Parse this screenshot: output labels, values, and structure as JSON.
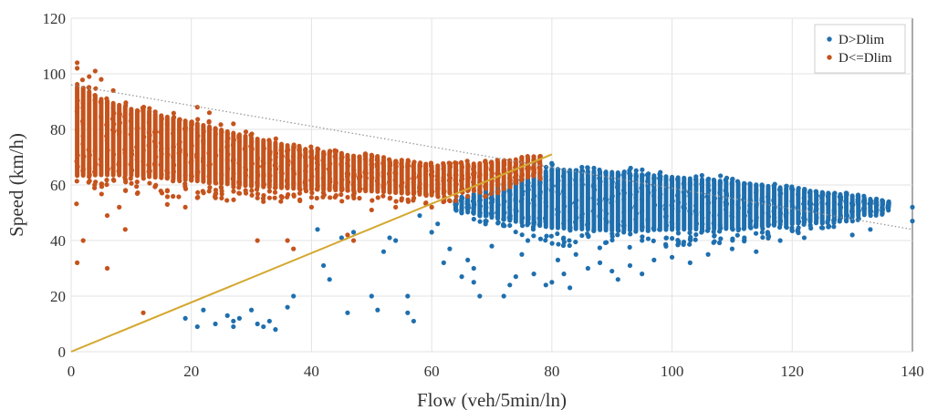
{
  "chart_data": {
    "type": "scatter",
    "xlabel": "Flow (veh/5min/ln)",
    "ylabel": "Speed (km/h)",
    "xlim": [
      0,
      140
    ],
    "ylim": [
      0,
      120
    ],
    "xticks": [
      0,
      20,
      40,
      60,
      80,
      100,
      120,
      140
    ],
    "yticks": [
      0,
      20,
      40,
      60,
      80,
      100,
      120
    ],
    "grid": true,
    "legend_position": "top-right",
    "legend": [
      "D>Dlim",
      "D<=Dlim"
    ],
    "series": [
      {
        "name": "D>Dlim",
        "color": "#1f6fae",
        "band": {
          "x": [
            64,
            70,
            80,
            90,
            100,
            110,
            120,
            130,
            136
          ],
          "upper": [
            55,
            60,
            68,
            67,
            65,
            63,
            60,
            57,
            54
          ],
          "lower": [
            50,
            45,
            38,
            37,
            38,
            39,
            42,
            46,
            50
          ]
        },
        "outliers": [
          [
            19,
            12
          ],
          [
            21,
            9
          ],
          [
            22,
            15
          ],
          [
            24,
            10
          ],
          [
            26,
            13
          ],
          [
            27,
            9
          ],
          [
            27,
            11
          ],
          [
            28,
            12
          ],
          [
            30,
            15
          ],
          [
            31,
            10
          ],
          [
            32,
            9
          ],
          [
            33,
            11
          ],
          [
            34,
            8
          ],
          [
            36,
            16
          ],
          [
            37,
            20
          ],
          [
            41,
            44
          ],
          [
            42,
            31
          ],
          [
            43,
            26
          ],
          [
            45,
            41
          ],
          [
            46,
            14
          ],
          [
            47,
            43
          ],
          [
            50,
            20
          ],
          [
            51,
            15
          ],
          [
            52,
            36
          ],
          [
            53,
            41
          ],
          [
            54,
            40
          ],
          [
            56,
            20
          ],
          [
            56,
            14
          ],
          [
            57,
            11
          ],
          [
            58,
            49
          ],
          [
            60,
            43
          ],
          [
            61,
            46
          ],
          [
            62,
            32
          ],
          [
            63,
            37
          ],
          [
            65,
            27
          ],
          [
            66,
            33
          ],
          [
            67,
            30
          ],
          [
            67,
            25
          ],
          [
            68,
            20
          ],
          [
            70,
            38
          ],
          [
            72,
            20
          ],
          [
            73,
            24
          ],
          [
            74,
            27
          ],
          [
            75,
            35
          ],
          [
            76,
            40
          ],
          [
            77,
            28
          ],
          [
            79,
            24
          ],
          [
            80,
            25
          ],
          [
            81,
            33
          ],
          [
            82,
            28
          ],
          [
            83,
            23
          ],
          [
            84,
            35
          ],
          [
            86,
            30
          ],
          [
            88,
            32
          ],
          [
            90,
            29
          ],
          [
            91,
            26
          ],
          [
            93,
            31
          ],
          [
            95,
            28
          ],
          [
            97,
            33
          ],
          [
            100,
            34
          ],
          [
            103,
            32
          ],
          [
            106,
            35
          ],
          [
            110,
            37
          ],
          [
            114,
            36
          ],
          [
            118,
            40
          ],
          [
            122,
            41
          ],
          [
            130,
            42
          ],
          [
            133,
            44
          ],
          [
            140,
            47
          ],
          [
            140,
            52
          ]
        ]
      },
      {
        "name": "D<=Dlim",
        "color": "#c5531c",
        "band": {
          "x": [
            1,
            5,
            10,
            20,
            30,
            40,
            50,
            60,
            70,
            78
          ],
          "upper": [
            100,
            94,
            90,
            85,
            79,
            74,
            71,
            68,
            69,
            71
          ],
          "lower": [
            53,
            55,
            56,
            55,
            54,
            54,
            54,
            53,
            56,
            62
          ]
        },
        "outliers": [
          [
            1,
            104
          ],
          [
            1,
            102
          ],
          [
            3,
            99
          ],
          [
            4,
            101
          ],
          [
            5,
            98
          ],
          [
            7,
            94
          ],
          [
            2,
            40
          ],
          [
            1,
            32
          ],
          [
            6,
            30
          ],
          [
            6,
            49
          ],
          [
            8,
            52
          ],
          [
            9,
            44
          ],
          [
            12,
            14
          ],
          [
            16,
            53
          ],
          [
            19,
            52
          ],
          [
            21,
            88
          ],
          [
            23,
            86
          ],
          [
            27,
            82
          ],
          [
            31,
            40
          ],
          [
            36,
            40
          ],
          [
            37,
            37
          ],
          [
            40,
            52
          ],
          [
            46,
            42
          ],
          [
            47,
            40
          ],
          [
            50,
            51
          ],
          [
            54,
            52
          ],
          [
            60,
            52
          ]
        ]
      }
    ],
    "lines": [
      {
        "name": "",
        "style": "solid",
        "color": "#d4a82f",
        "x": [
          0,
          80
        ],
        "y": [
          0,
          71
        ]
      },
      {
        "name": "",
        "style": "dotted",
        "color": "#9a9a9a",
        "x": [
          0,
          140
        ],
        "y": [
          96,
          44
        ]
      }
    ]
  }
}
